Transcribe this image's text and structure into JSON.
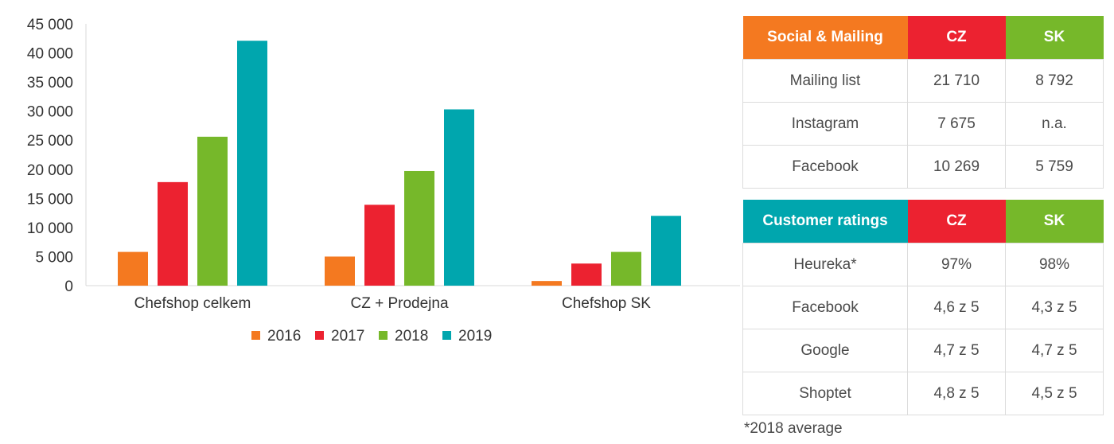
{
  "colors": {
    "s2016": "#f47920",
    "s2017": "#ec2230",
    "s2018": "#76b82a",
    "s2019": "#00a6ae"
  },
  "chart_data": {
    "type": "bar",
    "categories": [
      "Chefshop celkem",
      "CZ + Prodejna",
      "Chefshop SK"
    ],
    "series": [
      {
        "name": "2016",
        "values": [
          5800,
          5000,
          800
        ]
      },
      {
        "name": "2017",
        "values": [
          17800,
          13900,
          3800
        ]
      },
      {
        "name": "2018",
        "values": [
          25600,
          19700,
          5800
        ]
      },
      {
        "name": "2019",
        "values": [
          42100,
          30300,
          12000
        ]
      }
    ],
    "yticks": [
      "0",
      "5 000",
      "10 000",
      "15 000",
      "20 000",
      "25 000",
      "30 000",
      "35 000",
      "40 000",
      "45 000"
    ],
    "ylim": [
      0,
      45000
    ],
    "legend": "bottom",
    "grid": false
  },
  "social": {
    "headers": [
      "Social & Mailing",
      "CZ",
      "SK"
    ],
    "rows": [
      {
        "label": "Mailing list",
        "cz": "21 710",
        "sk": "8 792"
      },
      {
        "label": "Instagram",
        "cz": "7 675",
        "sk": "n.a."
      },
      {
        "label": "Facebook",
        "cz": "10 269",
        "sk": "5 759"
      }
    ]
  },
  "ratings": {
    "headers": [
      "Customer ratings",
      "CZ",
      "SK"
    ],
    "rows": [
      {
        "label": "Heureka*",
        "cz": "97%",
        "sk": "98%"
      },
      {
        "label": "Facebook",
        "cz": "4,6 z 5",
        "sk": "4,3 z 5"
      },
      {
        "label": "Google",
        "cz": "4,7 z 5",
        "sk": "4,7 z 5"
      },
      {
        "label": "Shoptet",
        "cz": "4,8 z 5",
        "sk": "4,5 z 5"
      }
    ]
  },
  "footnote": "*2018 average"
}
